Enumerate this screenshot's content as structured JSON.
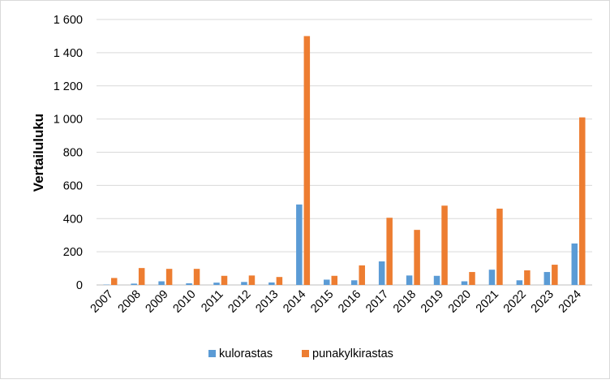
{
  "chart_data": {
    "type": "bar",
    "title": "",
    "xlabel": "",
    "ylabel": "Vertailuluku",
    "ylim": [
      0,
      1600
    ],
    "yticks": [
      0,
      200,
      400,
      600,
      800,
      1000,
      1200,
      1400,
      1600
    ],
    "ytick_labels": [
      "0",
      "200",
      "400",
      "600",
      "800",
      "1 000",
      "1 200",
      "1 400",
      "1 600"
    ],
    "grid": true,
    "legend_position": "bottom",
    "categories": [
      "2007",
      "2008",
      "2009",
      "2010",
      "2011",
      "2012",
      "2013",
      "2014",
      "2015",
      "2016",
      "2017",
      "2018",
      "2019",
      "2020",
      "2021",
      "2022",
      "2023",
      "2024"
    ],
    "series": [
      {
        "name": "kulorastas",
        "color": "#5b9bd5",
        "values": [
          2,
          8,
          22,
          10,
          14,
          18,
          15,
          485,
          32,
          28,
          142,
          57,
          55,
          22,
          92,
          28,
          78,
          250
        ]
      },
      {
        "name": "punakylkirastas",
        "color": "#ed7d31",
        "values": [
          42,
          102,
          97,
          97,
          55,
          57,
          48,
          1500,
          55,
          118,
          405,
          332,
          478,
          78,
          460,
          88,
          122,
          1010
        ]
      }
    ]
  }
}
